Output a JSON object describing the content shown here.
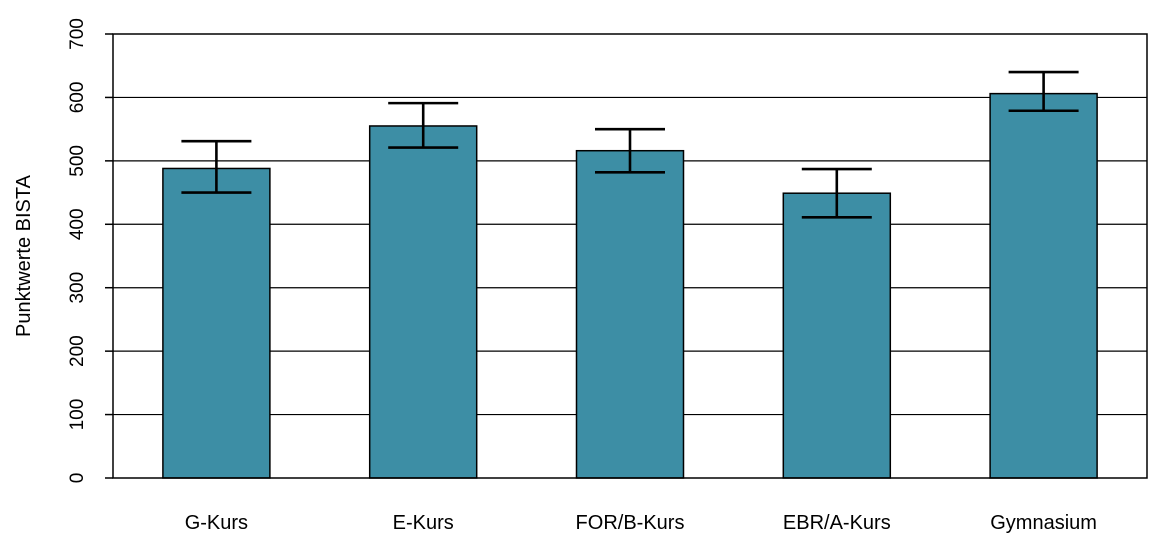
{
  "chart_data": {
    "type": "bar",
    "title": "",
    "xlabel": "",
    "ylabel": "Punktwerte BISTA",
    "ylim": [
      0,
      700
    ],
    "yticks": [
      0,
      100,
      200,
      300,
      400,
      500,
      600,
      700
    ],
    "grid": true,
    "legend": "none",
    "categories": [
      "G-Kurs",
      "E-Kurs",
      "FOR/B-Kurs",
      "EBR/A-Kurs",
      "Gymnasium"
    ],
    "values": [
      488,
      555,
      516,
      449,
      606
    ],
    "error_low": [
      450,
      521,
      482,
      411,
      579
    ],
    "error_high": [
      531,
      591,
      550,
      487,
      640
    ],
    "bar_color": "#3d8ea5",
    "bar_edge_color": "#000000"
  }
}
